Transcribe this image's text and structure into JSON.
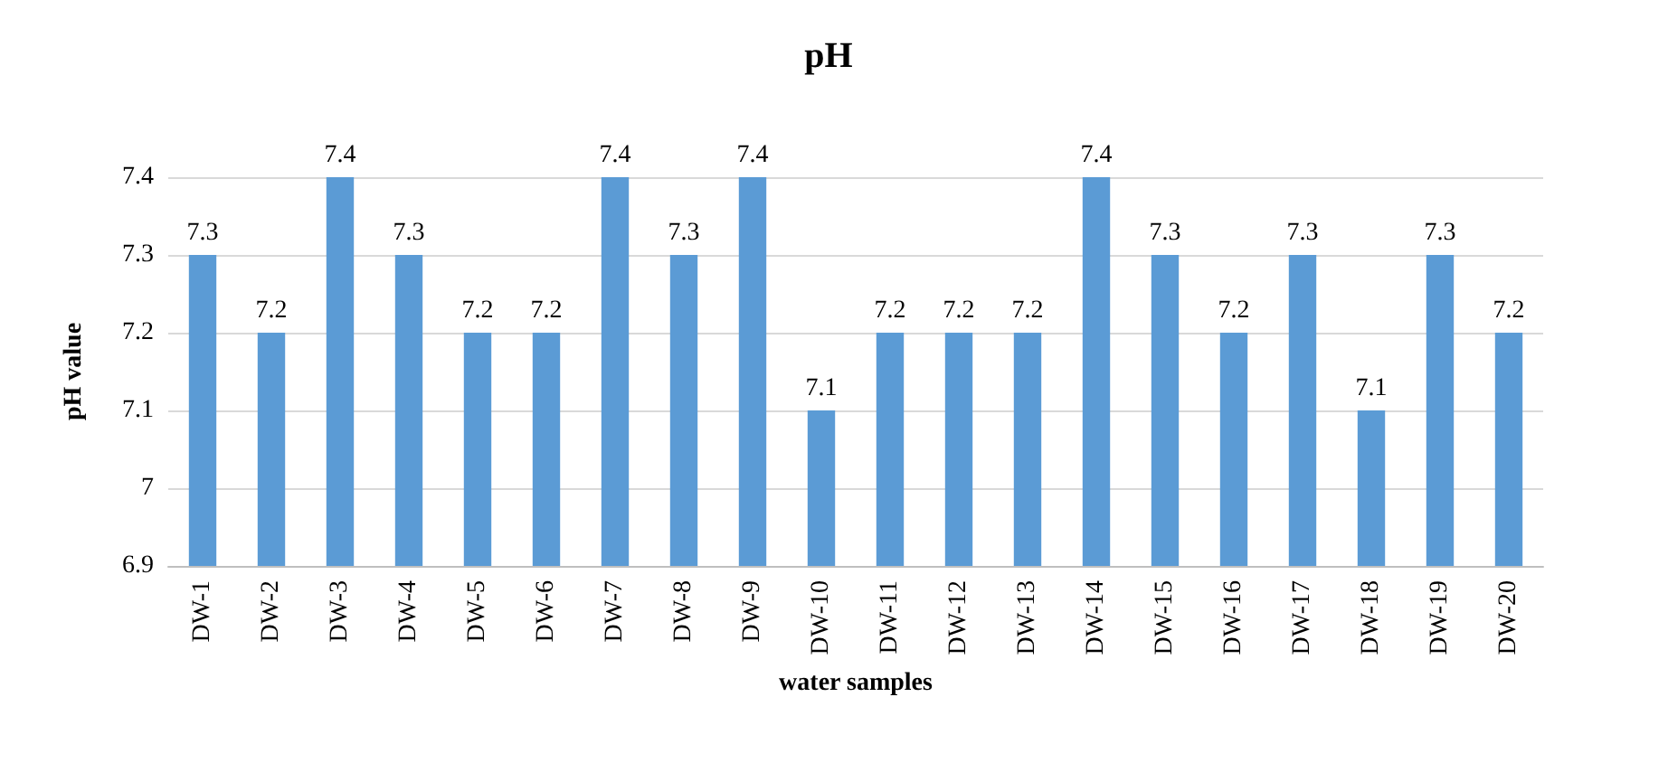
{
  "chart_data": {
    "type": "bar",
    "title": "pH",
    "xlabel": "water samples",
    "ylabel": "pH value",
    "categories": [
      "DW-1",
      "DW-2",
      "DW-3",
      "DW-4",
      "DW-5",
      "DW-6",
      "DW-7",
      "DW-8",
      "DW-9",
      "DW-10",
      "DW-11",
      "DW-12",
      "DW-13",
      "DW-14",
      "DW-15",
      "DW-16",
      "DW-17",
      "DW-18",
      "DW-19",
      "DW-20"
    ],
    "values": [
      7.3,
      7.2,
      7.4,
      7.3,
      7.2,
      7.2,
      7.4,
      7.3,
      7.4,
      7.1,
      7.2,
      7.2,
      7.2,
      7.4,
      7.3,
      7.2,
      7.3,
      7.1,
      7.3,
      7.2
    ],
    "color": "#5b9bd5",
    "ylim": [
      6.9,
      7.4
    ],
    "yticks": [
      6.9,
      7,
      7.1,
      7.2,
      7.3,
      7.4
    ],
    "grid": "y",
    "data_labels": true
  }
}
